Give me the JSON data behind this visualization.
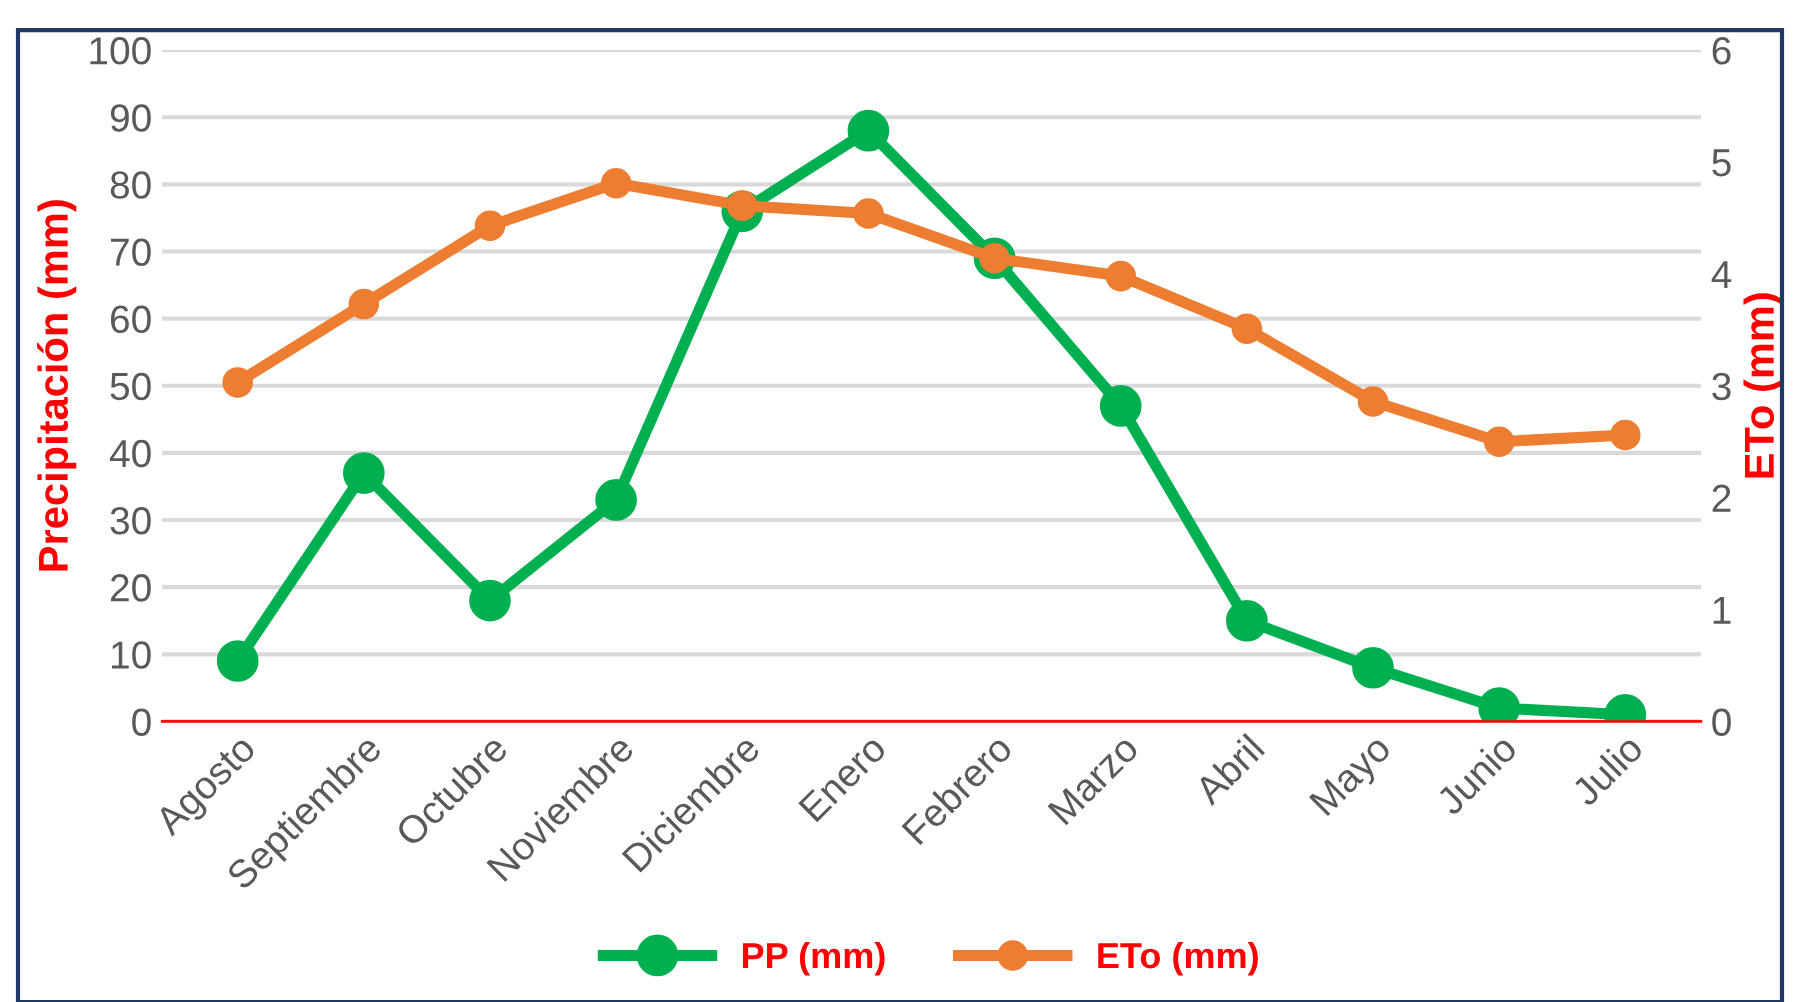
{
  "chart_data": {
    "type": "line",
    "categories": [
      "Agosto",
      "Septiembre",
      "Octubre",
      "Noviembre",
      "Diciembre",
      "Enero",
      "Febrero",
      "Marzo",
      "Abril",
      "Mayo",
      "Junio",
      "Julio"
    ],
    "series": [
      {
        "name": "PP (mm)",
        "color": "#00b050",
        "values": [
          9,
          37,
          18,
          33,
          76,
          88,
          69,
          47,
          15,
          8,
          2,
          1
        ]
      },
      {
        "name": "ETo (mm)",
        "color": "#ed7d31",
        "axis": "y2",
        "values": [
          3.03,
          3.73,
          4.43,
          4.81,
          4.61,
          4.54,
          4.14,
          3.98,
          3.51,
          2.86,
          2.5,
          2.56
        ]
      }
    ],
    "ylabel": "Precipitación (mm)",
    "y2label": "ETo (mm)",
    "ylim": [
      0,
      100
    ],
    "yticks": [
      0,
      10,
      20,
      30,
      40,
      50,
      60,
      70,
      80,
      90,
      100
    ],
    "y2lim": [
      0,
      6
    ],
    "y2ticks": [
      0,
      1,
      2,
      3,
      4,
      5,
      6
    ],
    "grid": "y",
    "legend": "bottom",
    "marker": "circle",
    "line_style": "solid"
  }
}
